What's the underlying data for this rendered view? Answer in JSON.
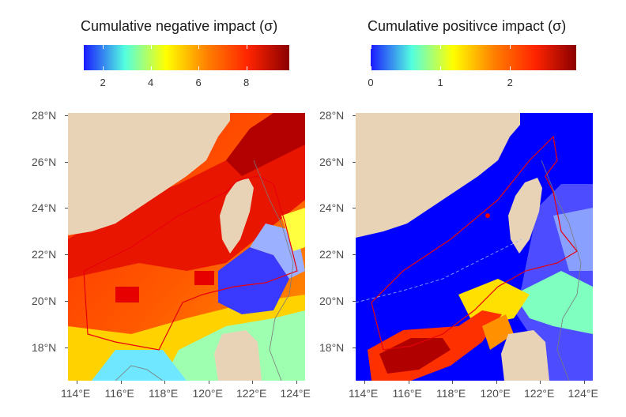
{
  "panels": [
    {
      "id": "negative",
      "legend_title": "Cumulative negative impact (σ)",
      "colorbar_ticks": [
        "2",
        "4",
        "6",
        "8"
      ],
      "colorbar_range": [
        1.2,
        9.8
      ],
      "colorbar_tick_values": [
        2,
        4,
        6,
        8
      ],
      "colors": [
        "#1a1aff",
        "#53ffe0",
        "#ffff00",
        "#ff8000",
        "#ff2400",
        "#8b0000"
      ]
    },
    {
      "id": "positive",
      "legend_title": "Cumulative positivce impact (σ)",
      "colorbar_ticks": [
        "0",
        "1",
        "2"
      ],
      "colorbar_range": [
        0,
        2.95
      ],
      "colorbar_tick_values": [
        0,
        1,
        2
      ],
      "colors": [
        "#1a1aff",
        "#53ffe0",
        "#ffff00",
        "#ff8000",
        "#ff2400",
        "#8b0000"
      ]
    }
  ],
  "y_axis_labels": [
    "28°N",
    "26°N",
    "24°N",
    "22°N",
    "20°N",
    "18°N"
  ],
  "x_axis_labels": [
    "114°E",
    "116°E",
    "118°E",
    "120°E",
    "122°E",
    "124°E"
  ],
  "land_color": "#e9d3b6",
  "boundary_color": "#e8000b"
}
